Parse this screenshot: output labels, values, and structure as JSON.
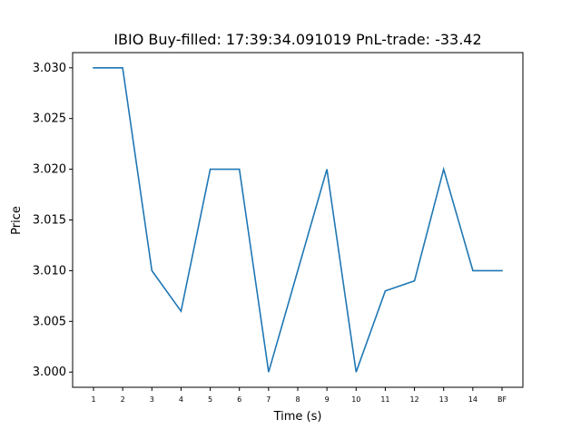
{
  "chart_data": {
    "type": "line",
    "title": "IBIO  Buy-filled:  17:39:34.091019  PnL-trade:  -33.42",
    "xlabel": "Time (s)",
    "ylabel": "Price",
    "categories": [
      "1",
      "2",
      "3",
      "4",
      "5",
      "6",
      "7",
      "8",
      "9",
      "10",
      "11",
      "12",
      "13",
      "14",
      "BF"
    ],
    "series": [
      {
        "values": [
          3.03,
          3.03,
          3.01,
          3.006,
          3.02,
          3.02,
          3.0,
          3.01,
          3.02,
          3.0,
          3.008,
          3.009,
          3.02,
          3.01,
          3.01
        ]
      }
    ],
    "yticks": [
      "3.000",
      "3.005",
      "3.010",
      "3.015",
      "3.020",
      "3.025",
      "3.030"
    ],
    "ylim": [
      2.9985,
      3.0315
    ],
    "grid": false,
    "line_color": "#1f77b4"
  }
}
